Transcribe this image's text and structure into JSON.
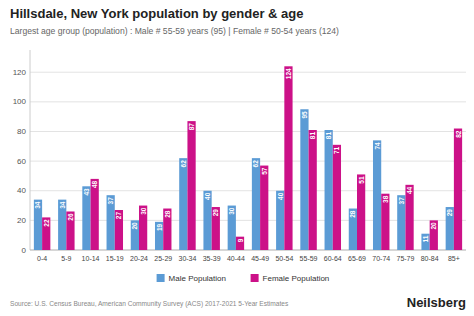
{
  "chart_data": {
    "type": "bar",
    "title": "Hillsdale, New York population by gender & age",
    "subtitle": "Largest age group (population) : Male # 55-59 years (95) | Female # 50-54 years (124)",
    "categories": [
      "0-4",
      "5-9",
      "10-14",
      "15-19",
      "20-24",
      "25-29",
      "30-34",
      "35-39",
      "40-44",
      "45-49",
      "50-54",
      "55-59",
      "60-64",
      "65-69",
      "70-74",
      "75-79",
      "80-84",
      "85+"
    ],
    "series": [
      {
        "name": "Male Population",
        "color": "#5B9BD5",
        "values": [
          34,
          34,
          43,
          37,
          20,
          19,
          62,
          40,
          30,
          62,
          40,
          95,
          81,
          28,
          74,
          37,
          11,
          29
        ]
      },
      {
        "name": "Female Population",
        "color": "#CC1188",
        "values": [
          22,
          26,
          48,
          27,
          30,
          28,
          87,
          29,
          9,
          57,
          124,
          81,
          71,
          51,
          38,
          44,
          20,
          82
        ]
      }
    ],
    "ylim": [
      0,
      135
    ],
    "yticks": [
      0,
      20,
      40,
      60,
      80,
      100,
      120
    ],
    "grid": true,
    "legend": "bottom",
    "data_labels": true,
    "annotations": [
      "Source: U.S. Census Bureau, American Community Survey (ACS) 2017-2021 5-Year Estimates",
      "Neilsberg"
    ]
  }
}
